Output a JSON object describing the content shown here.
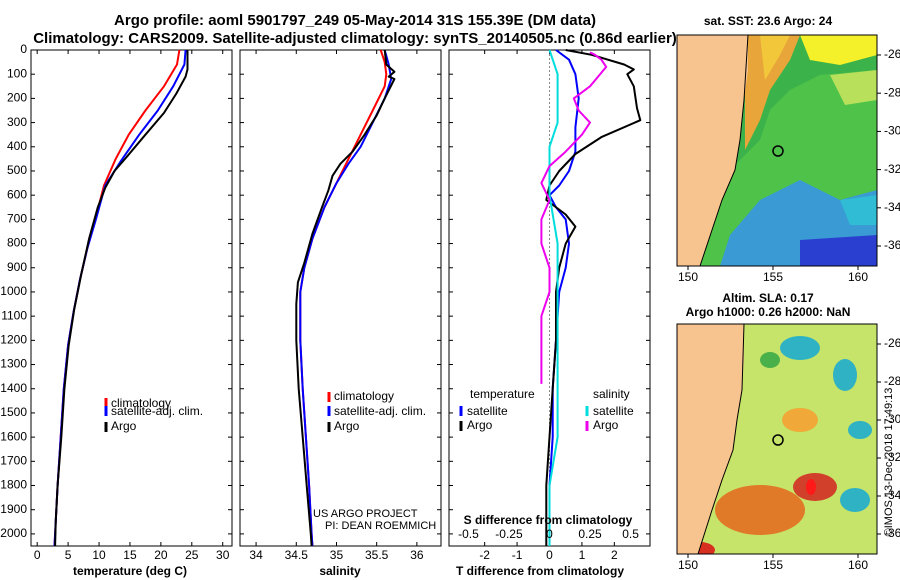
{
  "title": {
    "line1": "Argo profile: aoml 5901797_249 05-May-2014 31S 155.39E (DM data)",
    "line2": "Climatology: CARS2009. Satellite-adjusted climatology: synTS_20140505.nc (0.86d earlier)"
  },
  "colors": {
    "climatology": "#ff0000",
    "satellite": "#0000ff",
    "argo": "#000000",
    "sal_satellite": "#00dddd",
    "sal_argo": "#ee00ee",
    "land": "#f7c48f"
  },
  "depth_axis": {
    "min": 0,
    "max": 2050,
    "ticks": [
      "0",
      "100",
      "200",
      "300",
      "400",
      "500",
      "600",
      "700",
      "800",
      "900",
      "1000",
      "1100",
      "1200",
      "1300",
      "1400",
      "1500",
      "1600",
      "1700",
      "1800",
      "1900",
      "2000"
    ]
  },
  "chart_data": [
    {
      "type": "line",
      "name": "temperature",
      "xlabel": "temperature (deg C)",
      "xlim": [
        -1,
        31.5
      ],
      "xticks": [
        "0",
        "5",
        "10",
        "15",
        "20",
        "25",
        "30"
      ],
      "legend": [
        "climatology",
        "satellite-adj. clim.",
        "Argo"
      ],
      "series": [
        {
          "name": "climatology",
          "points": [
            [
              23.0,
              0
            ],
            [
              22.6,
              60
            ],
            [
              20.5,
              150
            ],
            [
              17.5,
              250
            ],
            [
              14.8,
              350
            ],
            [
              12.7,
              450
            ],
            [
              10.8,
              560
            ],
            [
              9.4,
              700
            ],
            [
              8.1,
              820
            ],
            [
              6.9,
              950
            ],
            [
              5.9,
              1080
            ],
            [
              5.0,
              1220
            ],
            [
              4.3,
              1400
            ],
            [
              3.8,
              1600
            ],
            [
              3.3,
              1800
            ],
            [
              2.9,
              2000
            ],
            [
              2.8,
              2050
            ]
          ]
        },
        {
          "name": "satellite-adj. clim.",
          "points": [
            [
              24.0,
              0
            ],
            [
              23.8,
              60
            ],
            [
              22.0,
              150
            ],
            [
              19.5,
              250
            ],
            [
              16.5,
              350
            ],
            [
              13.5,
              460
            ],
            [
              11.0,
              560
            ],
            [
              9.5,
              700
            ],
            [
              8.1,
              820
            ],
            [
              6.9,
              950
            ],
            [
              5.9,
              1080
            ],
            [
              5.0,
              1220
            ],
            [
              4.3,
              1400
            ],
            [
              3.8,
              1600
            ],
            [
              3.3,
              1800
            ],
            [
              2.9,
              2000
            ],
            [
              2.8,
              2050
            ]
          ]
        },
        {
          "name": "Argo",
          "points": [
            [
              24.3,
              0
            ],
            [
              24.3,
              80
            ],
            [
              24.0,
              110
            ],
            [
              22.5,
              180
            ],
            [
              20.5,
              260
            ],
            [
              17.5,
              350
            ],
            [
              14.2,
              450
            ],
            [
              12.5,
              500
            ],
            [
              11.0,
              570
            ],
            [
              9.8,
              650
            ],
            [
              8.4,
              780
            ],
            [
              7.1,
              930
            ],
            [
              6.0,
              1070
            ],
            [
              5.1,
              1220
            ],
            [
              4.4,
              1400
            ],
            [
              3.9,
              1600
            ],
            [
              3.3,
              1800
            ],
            [
              3.0,
              1950
            ],
            [
              2.9,
              2050
            ]
          ]
        }
      ]
    },
    {
      "type": "line",
      "name": "salinity",
      "xlabel": "salinity",
      "xlim": [
        33.8,
        36.3
      ],
      "xticks": [
        "34",
        "34.5",
        "35",
        "35.5",
        "36"
      ],
      "legend": [
        "climatology",
        "satellite-adj. clim.",
        "Argo"
      ],
      "annotation": [
        "US ARGO PROJECT",
        "PI: DEAN ROEMMICH"
      ],
      "series": [
        {
          "name": "climatology",
          "points": [
            [
              35.55,
              0
            ],
            [
              35.6,
              50
            ],
            [
              35.62,
              100
            ],
            [
              35.6,
              150
            ],
            [
              35.45,
              250
            ],
            [
              35.3,
              350
            ],
            [
              35.15,
              450
            ],
            [
              35.0,
              550
            ],
            [
              34.85,
              650
            ],
            [
              34.7,
              780
            ],
            [
              34.6,
              900
            ],
            [
              34.55,
              1000
            ],
            [
              34.55,
              1200
            ],
            [
              34.58,
              1400
            ],
            [
              34.62,
              1600
            ],
            [
              34.66,
              1800
            ],
            [
              34.69,
              2000
            ],
            [
              34.7,
              2050
            ]
          ]
        },
        {
          "name": "satellite-adj. clim.",
          "points": [
            [
              35.6,
              0
            ],
            [
              35.65,
              60
            ],
            [
              35.68,
              120
            ],
            [
              35.6,
              200
            ],
            [
              35.45,
              300
            ],
            [
              35.3,
              400
            ],
            [
              35.15,
              470
            ],
            [
              35.0,
              550
            ],
            [
              34.85,
              650
            ],
            [
              34.7,
              780
            ],
            [
              34.6,
              900
            ],
            [
              34.55,
              1000
            ],
            [
              34.55,
              1200
            ],
            [
              34.58,
              1400
            ],
            [
              34.62,
              1600
            ],
            [
              34.66,
              1800
            ],
            [
              34.69,
              2000
            ],
            [
              34.7,
              2050
            ]
          ]
        },
        {
          "name": "Argo",
          "points": [
            [
              35.6,
              0
            ],
            [
              35.62,
              60
            ],
            [
              35.72,
              90
            ],
            [
              35.65,
              110
            ],
            [
              35.72,
              120
            ],
            [
              35.6,
              200
            ],
            [
              35.5,
              270
            ],
            [
              35.35,
              350
            ],
            [
              35.2,
              420
            ],
            [
              35.05,
              470
            ],
            [
              34.95,
              520
            ],
            [
              34.9,
              580
            ],
            [
              34.82,
              650
            ],
            [
              34.7,
              760
            ],
            [
              34.6,
              880
            ],
            [
              34.52,
              960
            ],
            [
              34.5,
              1050
            ],
            [
              34.5,
              1200
            ],
            [
              34.53,
              1400
            ],
            [
              34.58,
              1600
            ],
            [
              34.63,
              1800
            ],
            [
              34.68,
              2000
            ],
            [
              34.69,
              2050
            ]
          ]
        }
      ]
    },
    {
      "type": "line",
      "name": "difference",
      "xlabel": "T difference from climatology",
      "xlabel_top": "S difference from climatology",
      "xlim": [
        -3.1,
        3.1
      ],
      "xticks": [
        "-2",
        "-1",
        "0",
        "1",
        "2"
      ],
      "xticks_top": [
        "-0.5",
        "-0.25",
        "0",
        "0.25",
        "0.5"
      ],
      "legend_left_title": "temperature",
      "legend_right_title": "salinity",
      "legend_left": [
        "satellite",
        "Argo"
      ],
      "legend_right": [
        "satellite",
        "Argo"
      ],
      "series": [
        {
          "name": "temperature-satellite",
          "points": [
            [
              0.2,
              0
            ],
            [
              0.6,
              40
            ],
            [
              0.8,
              100
            ],
            [
              0.9,
              200
            ],
            [
              0.8,
              320
            ],
            [
              0.8,
              420
            ],
            [
              0.6,
              500
            ],
            [
              0.3,
              560
            ],
            [
              0.0,
              600
            ],
            [
              0.2,
              650
            ],
            [
              0.5,
              700
            ],
            [
              0.6,
              800
            ],
            [
              0.5,
              900
            ],
            [
              0.3,
              1000
            ],
            [
              0.2,
              1200
            ],
            [
              0.1,
              1400
            ],
            [
              0.1,
              1600
            ],
            [
              0.0,
              1800
            ],
            [
              0.0,
              2050
            ]
          ]
        },
        {
          "name": "temperature-Argo",
          "points": [
            [
              0.5,
              0
            ],
            [
              1.3,
              20
            ],
            [
              2.3,
              60
            ],
            [
              2.6,
              80
            ],
            [
              2.4,
              100
            ],
            [
              2.6,
              150
            ],
            [
              2.7,
              240
            ],
            [
              2.8,
              290
            ],
            [
              1.6,
              360
            ],
            [
              0.8,
              430
            ],
            [
              0.3,
              500
            ],
            [
              0.0,
              560
            ],
            [
              -0.1,
              620
            ],
            [
              0.5,
              680
            ],
            [
              0.8,
              730
            ],
            [
              0.5,
              800
            ],
            [
              0.3,
              900
            ],
            [
              0.2,
              1000
            ],
            [
              0.2,
              1200
            ],
            [
              0.1,
              1400
            ],
            [
              0.0,
              1600
            ],
            [
              -0.1,
              1800
            ],
            [
              -0.1,
              2050
            ]
          ]
        },
        {
          "name": "salinity-satellite",
          "points": [
            [
              0.0,
              0
            ],
            [
              0.05,
              100
            ],
            [
              0.05,
              200
            ],
            [
              0.05,
              300
            ],
            [
              0.0,
              400
            ],
            [
              0.0,
              600
            ],
            [
              0.05,
              800
            ],
            [
              0.05,
              1000
            ],
            [
              0.05,
              1200
            ],
            [
              0.05,
              1400
            ],
            [
              0.05,
              1600
            ],
            [
              0.0,
              1800
            ],
            [
              0.0,
              2050
            ]
          ]
        },
        {
          "name": "salinity-Argo",
          "points": [
            [
              0.25,
              10
            ],
            [
              0.28,
              20
            ],
            [
              0.32,
              40
            ],
            [
              0.35,
              70
            ],
            [
              0.3,
              110
            ],
            [
              0.25,
              150
            ],
            [
              0.15,
              200
            ],
            [
              0.18,
              250
            ],
            [
              0.25,
              300
            ],
            [
              0.2,
              350
            ],
            [
              0.1,
              420
            ],
            [
              0.0,
              480
            ],
            [
              -0.05,
              550
            ],
            [
              0.0,
              620
            ],
            [
              -0.05,
              700
            ],
            [
              -0.05,
              800
            ],
            [
              0.0,
              900
            ],
            [
              0.0,
              1000
            ],
            [
              -0.05,
              1100
            ],
            [
              -0.05,
              1200
            ],
            [
              -0.05,
              1300
            ],
            [
              -0.05,
              1380
            ]
          ]
        }
      ]
    }
  ],
  "maps": [
    {
      "title": "sat. SST: 23.6 Argo: 24",
      "yticks": [
        "-26",
        "-28",
        "-30",
        "-32",
        "-34",
        "-36"
      ],
      "xticks": [
        "150",
        "155",
        "160"
      ]
    },
    {
      "title_line1": "Altim. SLA: 0.17",
      "title_line2": "Argo h1000: 0.26 h2000: NaN",
      "yticks": [
        "-26",
        "-28",
        "-30",
        "-32",
        "-34",
        "-36"
      ],
      "xticks": [
        "150",
        "155",
        "160"
      ],
      "side_text": "©IMOS 13-Dec-2018 17:49:13"
    }
  ]
}
